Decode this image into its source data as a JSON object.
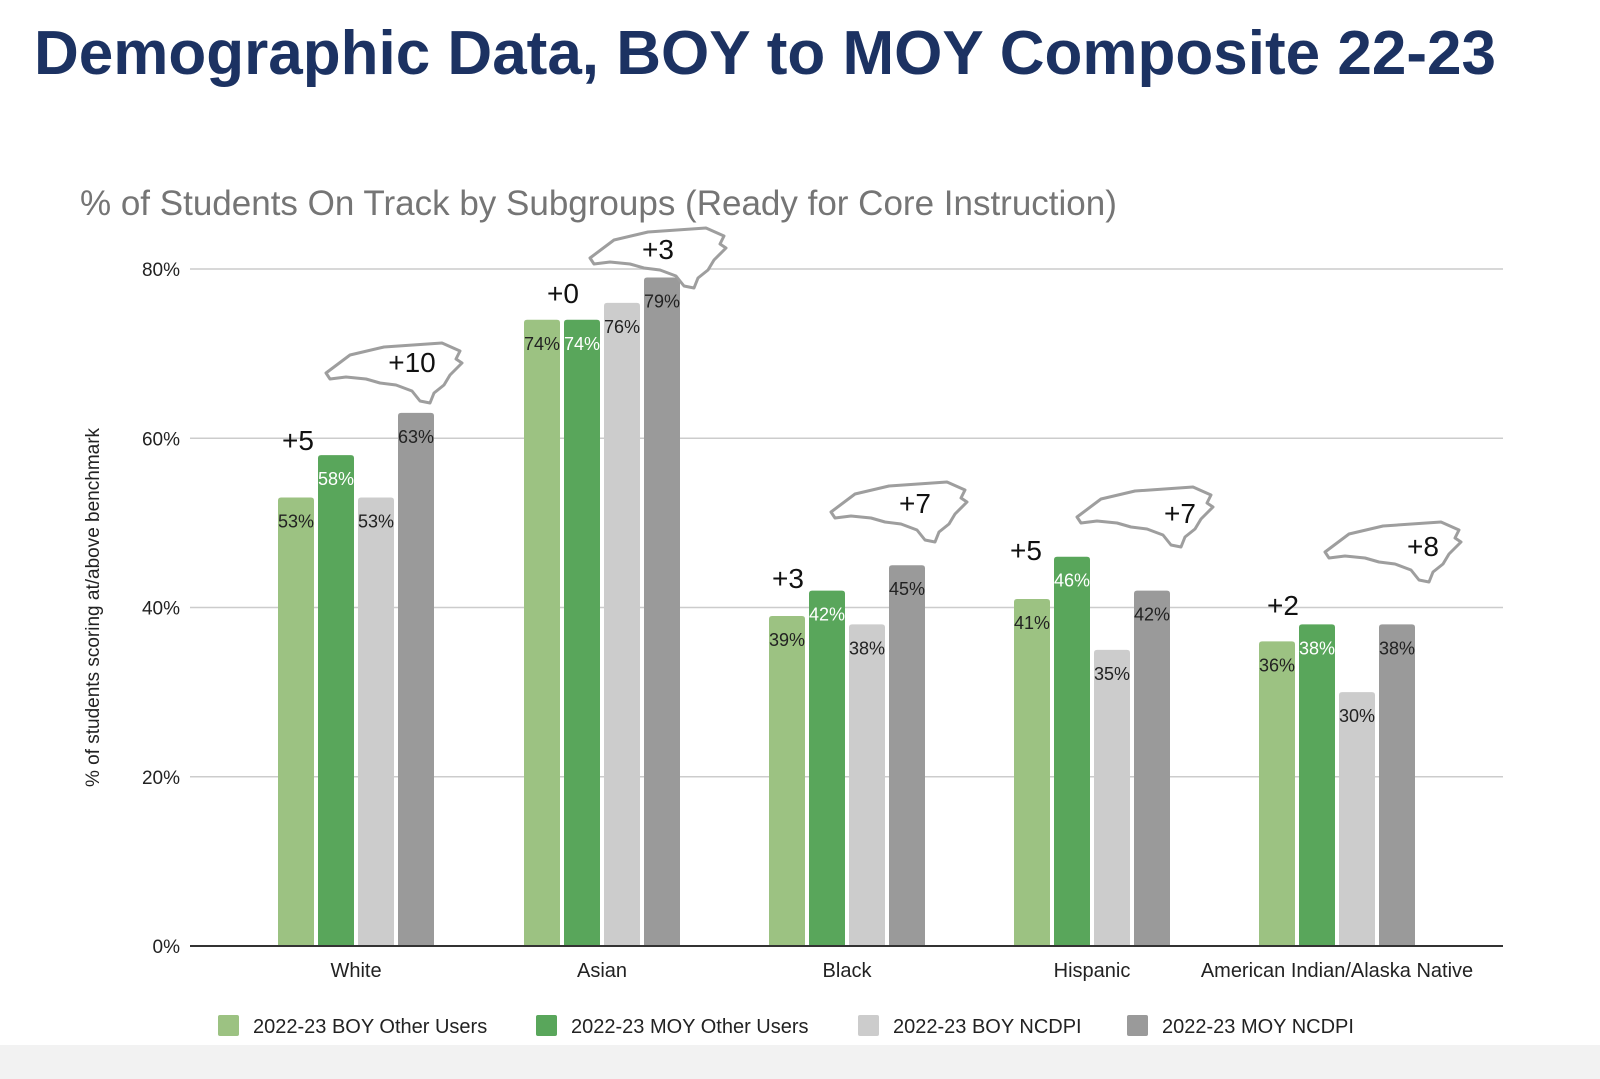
{
  "page": {
    "title": "Demographic Data, BOY to MOY Composite 22-23"
  },
  "colors": {
    "title": "#1c3262",
    "chart_title": "#757575",
    "grid": "#cccccc",
    "axis": "#333333",
    "text": "#222222",
    "state_outline": "#9e9e9e"
  },
  "chart_data": {
    "type": "bar",
    "title": "% of Students On Track by Subgroups (Ready for Core Instruction)",
    "xlabel": "",
    "ylabel": "% of students scoring at/above benchmark",
    "ylim": [
      0,
      80
    ],
    "yticks": [
      0,
      20,
      40,
      60,
      80
    ],
    "ytick_labels": [
      "0%",
      "20%",
      "40%",
      "60%",
      "80%"
    ],
    "grid": true,
    "legend_position": "bottom",
    "categories": [
      "White",
      "Asian",
      "Black",
      "Hispanic",
      "American Indian/Alaska Native"
    ],
    "series": [
      {
        "name": "2022-23 BOY Other Users",
        "color": "#9cc282",
        "label_color": "#222222",
        "values": [
          53,
          74,
          39,
          41,
          36
        ],
        "labels": [
          "53%",
          "74%",
          "39%",
          "41%",
          "36%"
        ]
      },
      {
        "name": "2022-23 MOY Other Users",
        "color": "#59a65b",
        "label_color": "#ffffff",
        "values": [
          58,
          74,
          42,
          46,
          38
        ],
        "labels": [
          "58%",
          "74%",
          "42%",
          "46%",
          "38%"
        ]
      },
      {
        "name": "2022-23 BOY NCDPI",
        "color": "#cccccc",
        "label_color": "#222222",
        "values": [
          53,
          76,
          38,
          35,
          30
        ],
        "labels": [
          "53%",
          "76%",
          "38%",
          "35%",
          "30%"
        ]
      },
      {
        "name": "2022-23 MOY NCDPI",
        "color": "#9a9a9a",
        "label_color": "#222222",
        "values": [
          63,
          79,
          45,
          42,
          38
        ],
        "labels": [
          "63%",
          "79%",
          "45%",
          "42%",
          "38%"
        ]
      }
    ],
    "annotations": {
      "other_users_change": [
        "+5",
        "+0",
        "+3",
        "+5",
        "+2"
      ],
      "ncdpi_change": [
        "+10",
        "+3",
        "+7",
        "+7",
        "+8"
      ]
    }
  }
}
